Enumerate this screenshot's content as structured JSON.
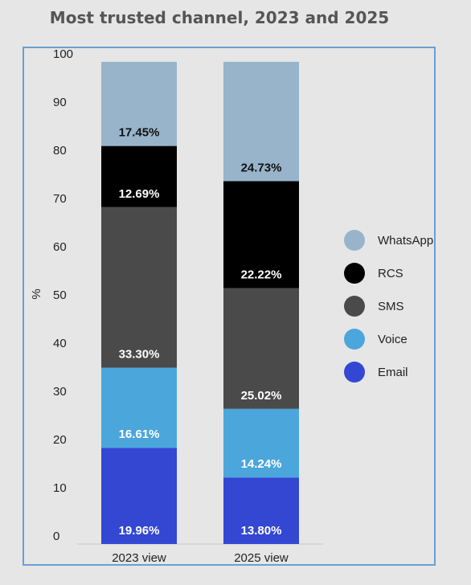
{
  "chart_data": {
    "type": "bar",
    "stacked": true,
    "title": "Most trusted channel, 2023 and 2025",
    "ylabel": "%",
    "xlabel": "",
    "ylim": [
      0,
      100
    ],
    "yticks": [
      0,
      10,
      20,
      30,
      40,
      50,
      60,
      70,
      80,
      90,
      100
    ],
    "categories": [
      "2023 view",
      "2025 view"
    ],
    "series": [
      {
        "name": "Email",
        "color": "#3347d3",
        "values": [
          19.96,
          13.8
        ],
        "labels": [
          "19.96%",
          "13.80%"
        ],
        "label_color": "#ffffff"
      },
      {
        "name": "Voice",
        "color": "#4ba6db",
        "values": [
          16.61,
          14.24
        ],
        "labels": [
          "16.61%",
          "14.24%"
        ],
        "label_color": "#ffffff"
      },
      {
        "name": "SMS",
        "color": "#4a4a4a",
        "values": [
          33.3,
          25.02
        ],
        "labels": [
          "33.30%",
          "25.02%"
        ],
        "label_color": "#ffffff"
      },
      {
        "name": "RCS",
        "color": "#000000",
        "values": [
          12.69,
          22.22
        ],
        "labels": [
          "12.69%",
          "22.22%"
        ],
        "label_color": "#ffffff"
      },
      {
        "name": "WhatsApp",
        "color": "#97b4ca",
        "values": [
          17.45,
          24.73
        ],
        "labels": [
          "17.45%",
          "24.73%"
        ],
        "label_color": "#111111"
      }
    ],
    "legend_order": [
      "WhatsApp",
      "RCS",
      "SMS",
      "Voice",
      "Email"
    ],
    "legend_position": "right",
    "grid": false
  }
}
